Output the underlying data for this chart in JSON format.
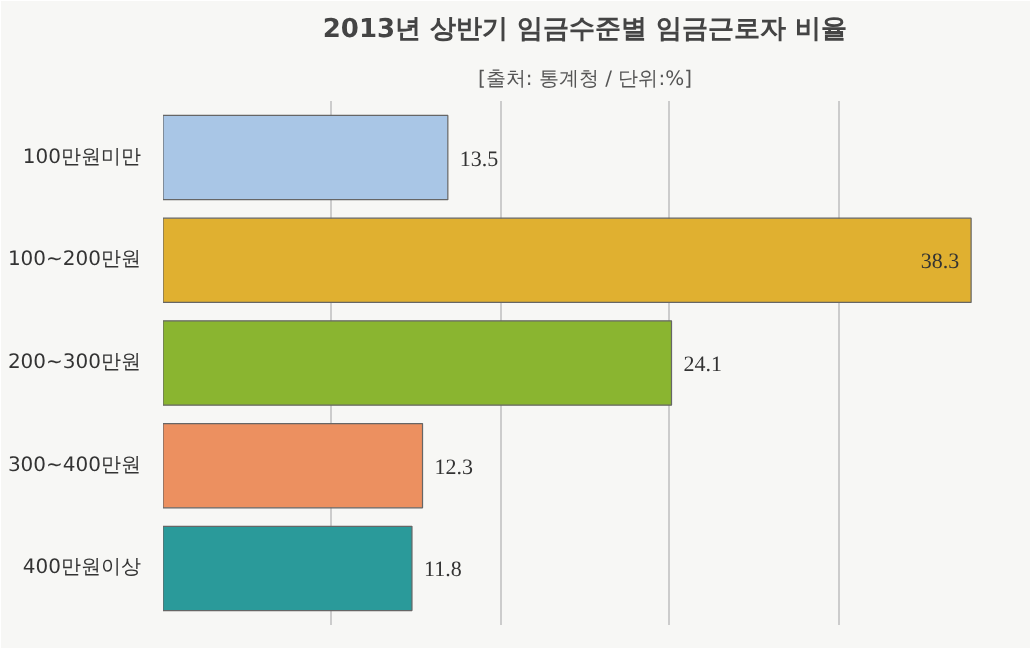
{
  "chart_data": {
    "type": "bar",
    "orientation": "horizontal",
    "title": "2013년 상반기 임금수준별 임금근로자 비율",
    "subtitle": "[출처: 통계청 / 단위:%]",
    "categories": [
      "100만원미만",
      "100~200만원",
      "200~300만원",
      "300~400만원",
      "400만원이상"
    ],
    "values": [
      13.5,
      38.3,
      24.1,
      12.3,
      11.8
    ],
    "colors": [
      "#a9c6e6",
      "#e0b030",
      "#8ab530",
      "#ec9060",
      "#2a9a9a"
    ],
    "xlim": [
      0,
      40
    ],
    "xticks": [
      {
        "value": 8,
        "label": null
      },
      {
        "value": 16,
        "label": null
      },
      {
        "value": 24,
        "label": null
      },
      {
        "value": 32,
        "label": null
      }
    ],
    "grid": "x",
    "data_labels": true,
    "tick_labels": "y"
  }
}
